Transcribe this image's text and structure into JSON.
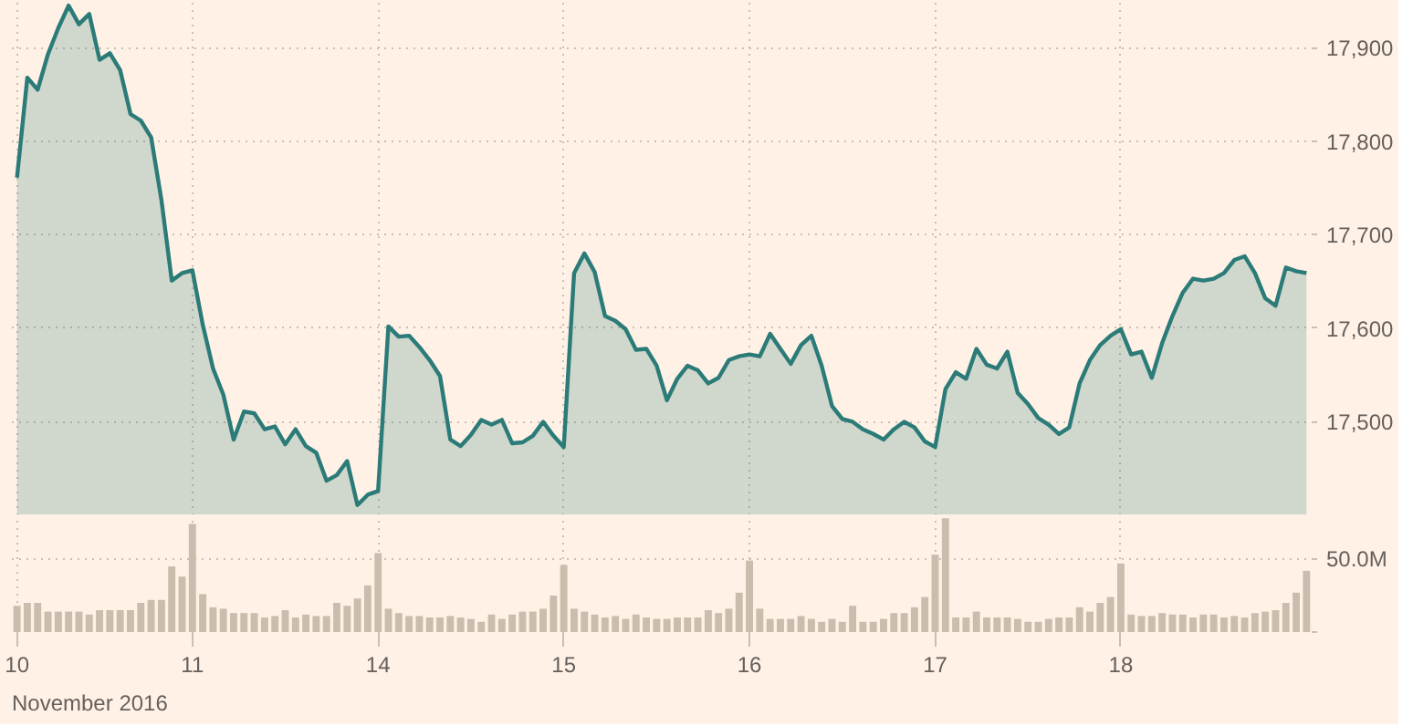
{
  "chart_data": [
    {
      "type": "area",
      "ylim": [
        17400,
        17950
      ],
      "grid": true,
      "tick_labels": "y",
      "yticks": [
        {
          "value": 17500,
          "label": "17,500"
        },
        {
          "value": 17600,
          "label": "17,600"
        },
        {
          "value": 17700,
          "label": "17,700"
        },
        {
          "value": 17800,
          "label": "17,800"
        },
        {
          "value": 17900,
          "label": "17,900"
        }
      ],
      "categories": [
        "10",
        null,
        null,
        null,
        null,
        null,
        null,
        null,
        null,
        null,
        null,
        null,
        null,
        null,
        null,
        null,
        null,
        "11",
        null,
        null,
        null,
        null,
        null,
        null,
        null,
        null,
        null,
        null,
        null,
        null,
        null,
        null,
        null,
        null,
        null,
        "14",
        null,
        null,
        null,
        null,
        null,
        null,
        null,
        null,
        null,
        null,
        null,
        null,
        null,
        null,
        null,
        null,
        null,
        "15",
        null,
        null,
        null,
        null,
        null,
        null,
        null,
        null,
        null,
        null,
        null,
        null,
        null,
        null,
        null,
        null,
        null,
        "16",
        null,
        null,
        null,
        null,
        null,
        null,
        null,
        null,
        null,
        null,
        null,
        null,
        null,
        null,
        null,
        null,
        null,
        "17",
        null,
        null,
        null,
        null,
        null,
        null,
        null,
        null,
        null,
        null,
        null,
        null,
        null,
        null,
        null,
        null,
        null,
        "18",
        null,
        null,
        null,
        null,
        null,
        null,
        null,
        null,
        null,
        null,
        null,
        null,
        null,
        null,
        null,
        null,
        null,
        null
      ],
      "series": [
        {
          "color": "#2b7b78",
          "values": [
            17761,
            17868,
            17855,
            17893,
            17921,
            17945,
            17925,
            17936,
            17887,
            17894,
            17876,
            17829,
            17822,
            17804,
            17737,
            17651,
            17659,
            17662,
            17604,
            17557,
            17529,
            17481,
            17511,
            17509,
            17492,
            17495,
            17476,
            17492,
            17474,
            17467,
            17437,
            17443,
            17458,
            17411,
            17422,
            17426,
            17602,
            17591,
            17592,
            17580,
            17566,
            17549,
            17481,
            17474,
            17486,
            17502,
            17497,
            17502,
            17477,
            17478,
            17485,
            17500,
            17485,
            17473,
            17659,
            17680,
            17660,
            17613,
            17608,
            17599,
            17577,
            17578,
            17560,
            17523,
            17546,
            17560,
            17555,
            17541,
            17547,
            17566,
            17570,
            17572,
            17570,
            17594,
            17578,
            17562,
            17582,
            17592,
            17560,
            17517,
            17503,
            17500,
            17492,
            17487,
            17481,
            17492,
            17500,
            17494,
            17479,
            17473,
            17535,
            17553,
            17546,
            17578,
            17561,
            17557,
            17575,
            17531,
            17519,
            17504,
            17497,
            17487,
            17494,
            17541,
            17566,
            17582,
            17592,
            17599,
            17572,
            17575,
            17547,
            17584,
            17613,
            17638,
            17653,
            17651,
            17653,
            17659,
            17673,
            17677,
            17659,
            17632,
            17624,
            17665,
            17661,
            17659
          ]
        }
      ]
    },
    {
      "type": "bar",
      "ylim": [
        0,
        80
      ],
      "grid": true,
      "xlabel": "November 2016",
      "yticks": [
        {
          "value": 0,
          "label": null
        },
        {
          "value": 50,
          "label": "50.0M"
        }
      ],
      "categories": [
        "10",
        null,
        null,
        null,
        null,
        null,
        null,
        null,
        null,
        null,
        null,
        null,
        null,
        null,
        null,
        null,
        null,
        "11",
        null,
        null,
        null,
        null,
        null,
        null,
        null,
        null,
        null,
        null,
        null,
        null,
        null,
        null,
        null,
        null,
        null,
        "14",
        null,
        null,
        null,
        null,
        null,
        null,
        null,
        null,
        null,
        null,
        null,
        null,
        null,
        null,
        null,
        null,
        null,
        "15",
        null,
        null,
        null,
        null,
        null,
        null,
        null,
        null,
        null,
        null,
        null,
        null,
        null,
        null,
        null,
        null,
        null,
        "16",
        null,
        null,
        null,
        null,
        null,
        null,
        null,
        null,
        null,
        null,
        null,
        null,
        null,
        null,
        null,
        null,
        null,
        "17",
        null,
        null,
        null,
        null,
        null,
        null,
        null,
        null,
        null,
        null,
        null,
        null,
        null,
        null,
        null,
        null,
        null,
        "18",
        null,
        null,
        null,
        null,
        null,
        null,
        null,
        null,
        null,
        null,
        null,
        null,
        null,
        null,
        null,
        null,
        null,
        null
      ],
      "series": [
        {
          "color": "#cbbcad",
          "values": [
            18,
            20,
            20,
            14,
            14,
            14,
            14,
            12,
            15,
            15,
            15,
            15,
            20,
            22,
            22,
            45,
            38,
            74,
            26,
            17,
            16,
            13,
            13,
            13,
            10,
            11,
            15,
            10,
            12,
            11,
            11,
            20,
            18,
            23,
            32,
            54,
            16,
            13,
            11,
            11,
            10,
            10,
            11,
            10,
            9,
            7,
            12,
            9,
            12,
            14,
            14,
            16,
            25,
            46,
            16,
            14,
            12,
            10,
            11,
            9,
            12,
            10,
            9,
            9,
            10,
            10,
            10,
            15,
            13,
            16,
            27,
            49,
            16,
            9,
            9,
            9,
            11,
            9,
            7,
            9,
            7,
            18,
            7,
            7,
            9,
            13,
            13,
            17,
            24,
            53,
            78,
            10,
            10,
            14,
            10,
            10,
            10,
            9,
            7,
            7,
            9,
            10,
            10,
            17,
            14,
            20,
            24,
            47,
            12,
            11,
            11,
            13,
            12,
            12,
            10,
            12,
            12,
            10,
            11,
            10,
            13,
            14,
            15,
            20,
            27,
            42
          ]
        }
      ]
    }
  ]
}
